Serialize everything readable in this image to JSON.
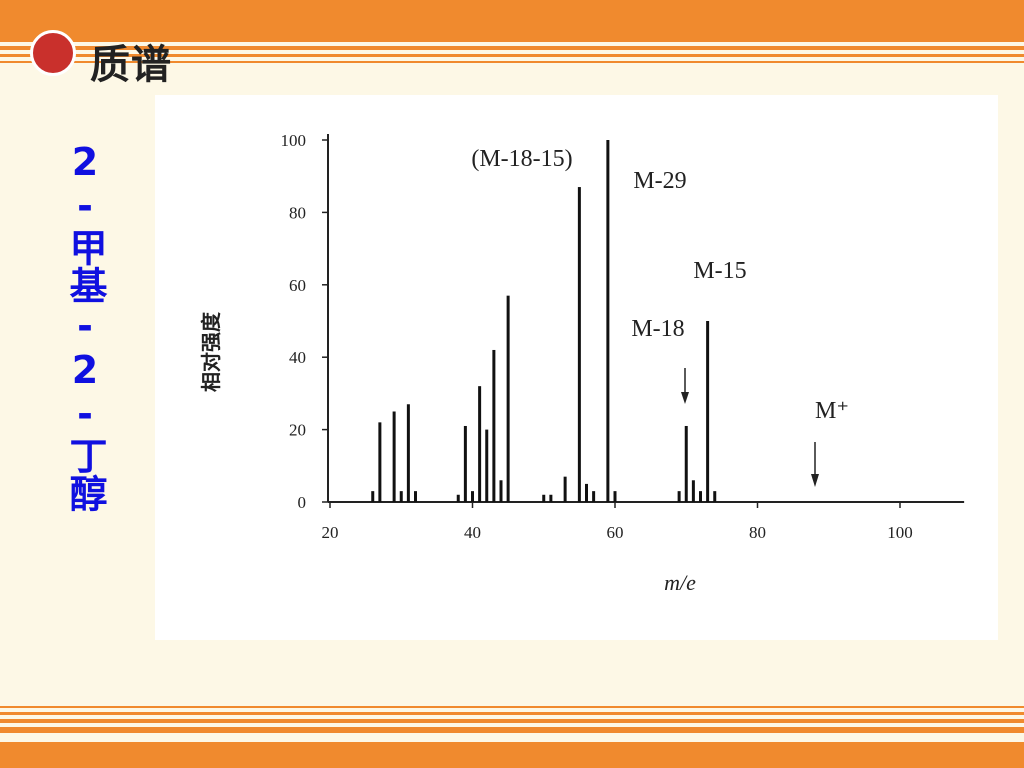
{
  "header": {
    "title": "质谱"
  },
  "side_title": "2-甲基-2-丁醇",
  "chart_data": {
    "type": "bar",
    "x": [
      26,
      27,
      29,
      30,
      31,
      32,
      38,
      39,
      40,
      41,
      42,
      43,
      44,
      45,
      50,
      51,
      53,
      55,
      56,
      57,
      59,
      60,
      69,
      70,
      71,
      72,
      73,
      74
    ],
    "values": [
      3,
      22,
      25,
      3,
      27,
      3,
      2,
      21,
      3,
      32,
      20,
      42,
      6,
      57,
      2,
      2,
      7,
      87,
      5,
      3,
      100,
      3,
      3,
      21,
      6,
      3,
      50,
      3
    ],
    "color": "#111111",
    "xlim": [
      20,
      109
    ],
    "ylim": [
      0,
      100
    ],
    "xticks": [
      20,
      40,
      60,
      80,
      100
    ],
    "yticks": [
      0,
      20,
      40,
      60,
      80,
      100
    ],
    "x_label": "m/e",
    "y_label": "相对强度",
    "annotations": [
      "(M-18-15)",
      "M-29",
      "M-15",
      "M-18",
      "M⁺"
    ]
  }
}
